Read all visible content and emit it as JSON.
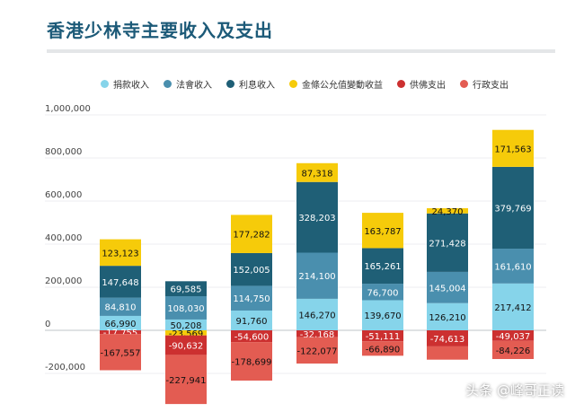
{
  "title": "香港少林寺主要收入及支出",
  "watermark": "头条 @峰哥正读",
  "colors": {
    "捐款收入": "#86d4ea",
    "法會收入": "#4a8fae",
    "利息收入": "#1f5f76",
    "金條公允值變動收益": "#f6cb0a",
    "供佛支出": "#cc3030",
    "行政支出": "#e35c52"
  },
  "chart_data": {
    "type": "bar",
    "stacked": true,
    "title": "香港少林寺主要收入及支出",
    "legend_position": "top",
    "grid": true,
    "ylim": [
      -250000,
      1000000
    ],
    "y_ticks": [
      "1,000,000",
      "800,000",
      "600,000",
      "400,000",
      "200,000",
      "0",
      "-200,000"
    ],
    "y_tick_values": [
      1000000,
      800000,
      600000,
      400000,
      200000,
      0,
      -200000
    ],
    "categories": [
      "",
      "",
      "",
      "",
      "",
      "",
      ""
    ],
    "series": [
      {
        "name": "捐款收入",
        "values": [
          66990,
          50208,
          91760,
          146270,
          139670,
          126210,
          217412
        ],
        "labels": [
          "66,990",
          "50,208",
          "91,760",
          "146,270",
          "139,670",
          "126,210",
          "217,412"
        ]
      },
      {
        "name": "法會收入",
        "values": [
          84810,
          108030,
          114750,
          214100,
          76700,
          145004,
          161610
        ],
        "labels": [
          "84,810",
          "108,030",
          "114,750",
          "214,100",
          "76,700",
          "145,004",
          "161,610"
        ]
      },
      {
        "name": "利息收入",
        "values": [
          147648,
          69585,
          152005,
          328203,
          165261,
          271428,
          379769
        ],
        "labels": [
          "147,648",
          "69,585",
          "152,005",
          "328,203",
          "165,261",
          "271,428",
          "379,769"
        ]
      },
      {
        "name": "金條公允值變動收益",
        "values": [
          123123,
          -23569,
          177282,
          87318,
          163787,
          24370,
          171563
        ],
        "labels": [
          "123,123",
          "-23,569",
          "177,282",
          "87,318",
          "163,787",
          "24,370",
          "171,563"
        ]
      },
      {
        "name": "供佛支出",
        "values": [
          -17755,
          -90632,
          -54600,
          -32168,
          -51111,
          -74613,
          -49037
        ],
        "labels": [
          "-17,755",
          "-90,632",
          "-54,600",
          "-32,168",
          "-51,111",
          "-74,613",
          "-49,037"
        ]
      },
      {
        "name": "行政支出",
        "values": [
          -167557,
          -227941,
          -178699,
          -122077,
          -66890,
          -61613,
          -84226
        ],
        "labels": [
          "-167,557",
          "-227,941",
          "-178,699",
          "-122,077",
          "-66,890",
          "",
          "-84,226"
        ]
      }
    ]
  }
}
